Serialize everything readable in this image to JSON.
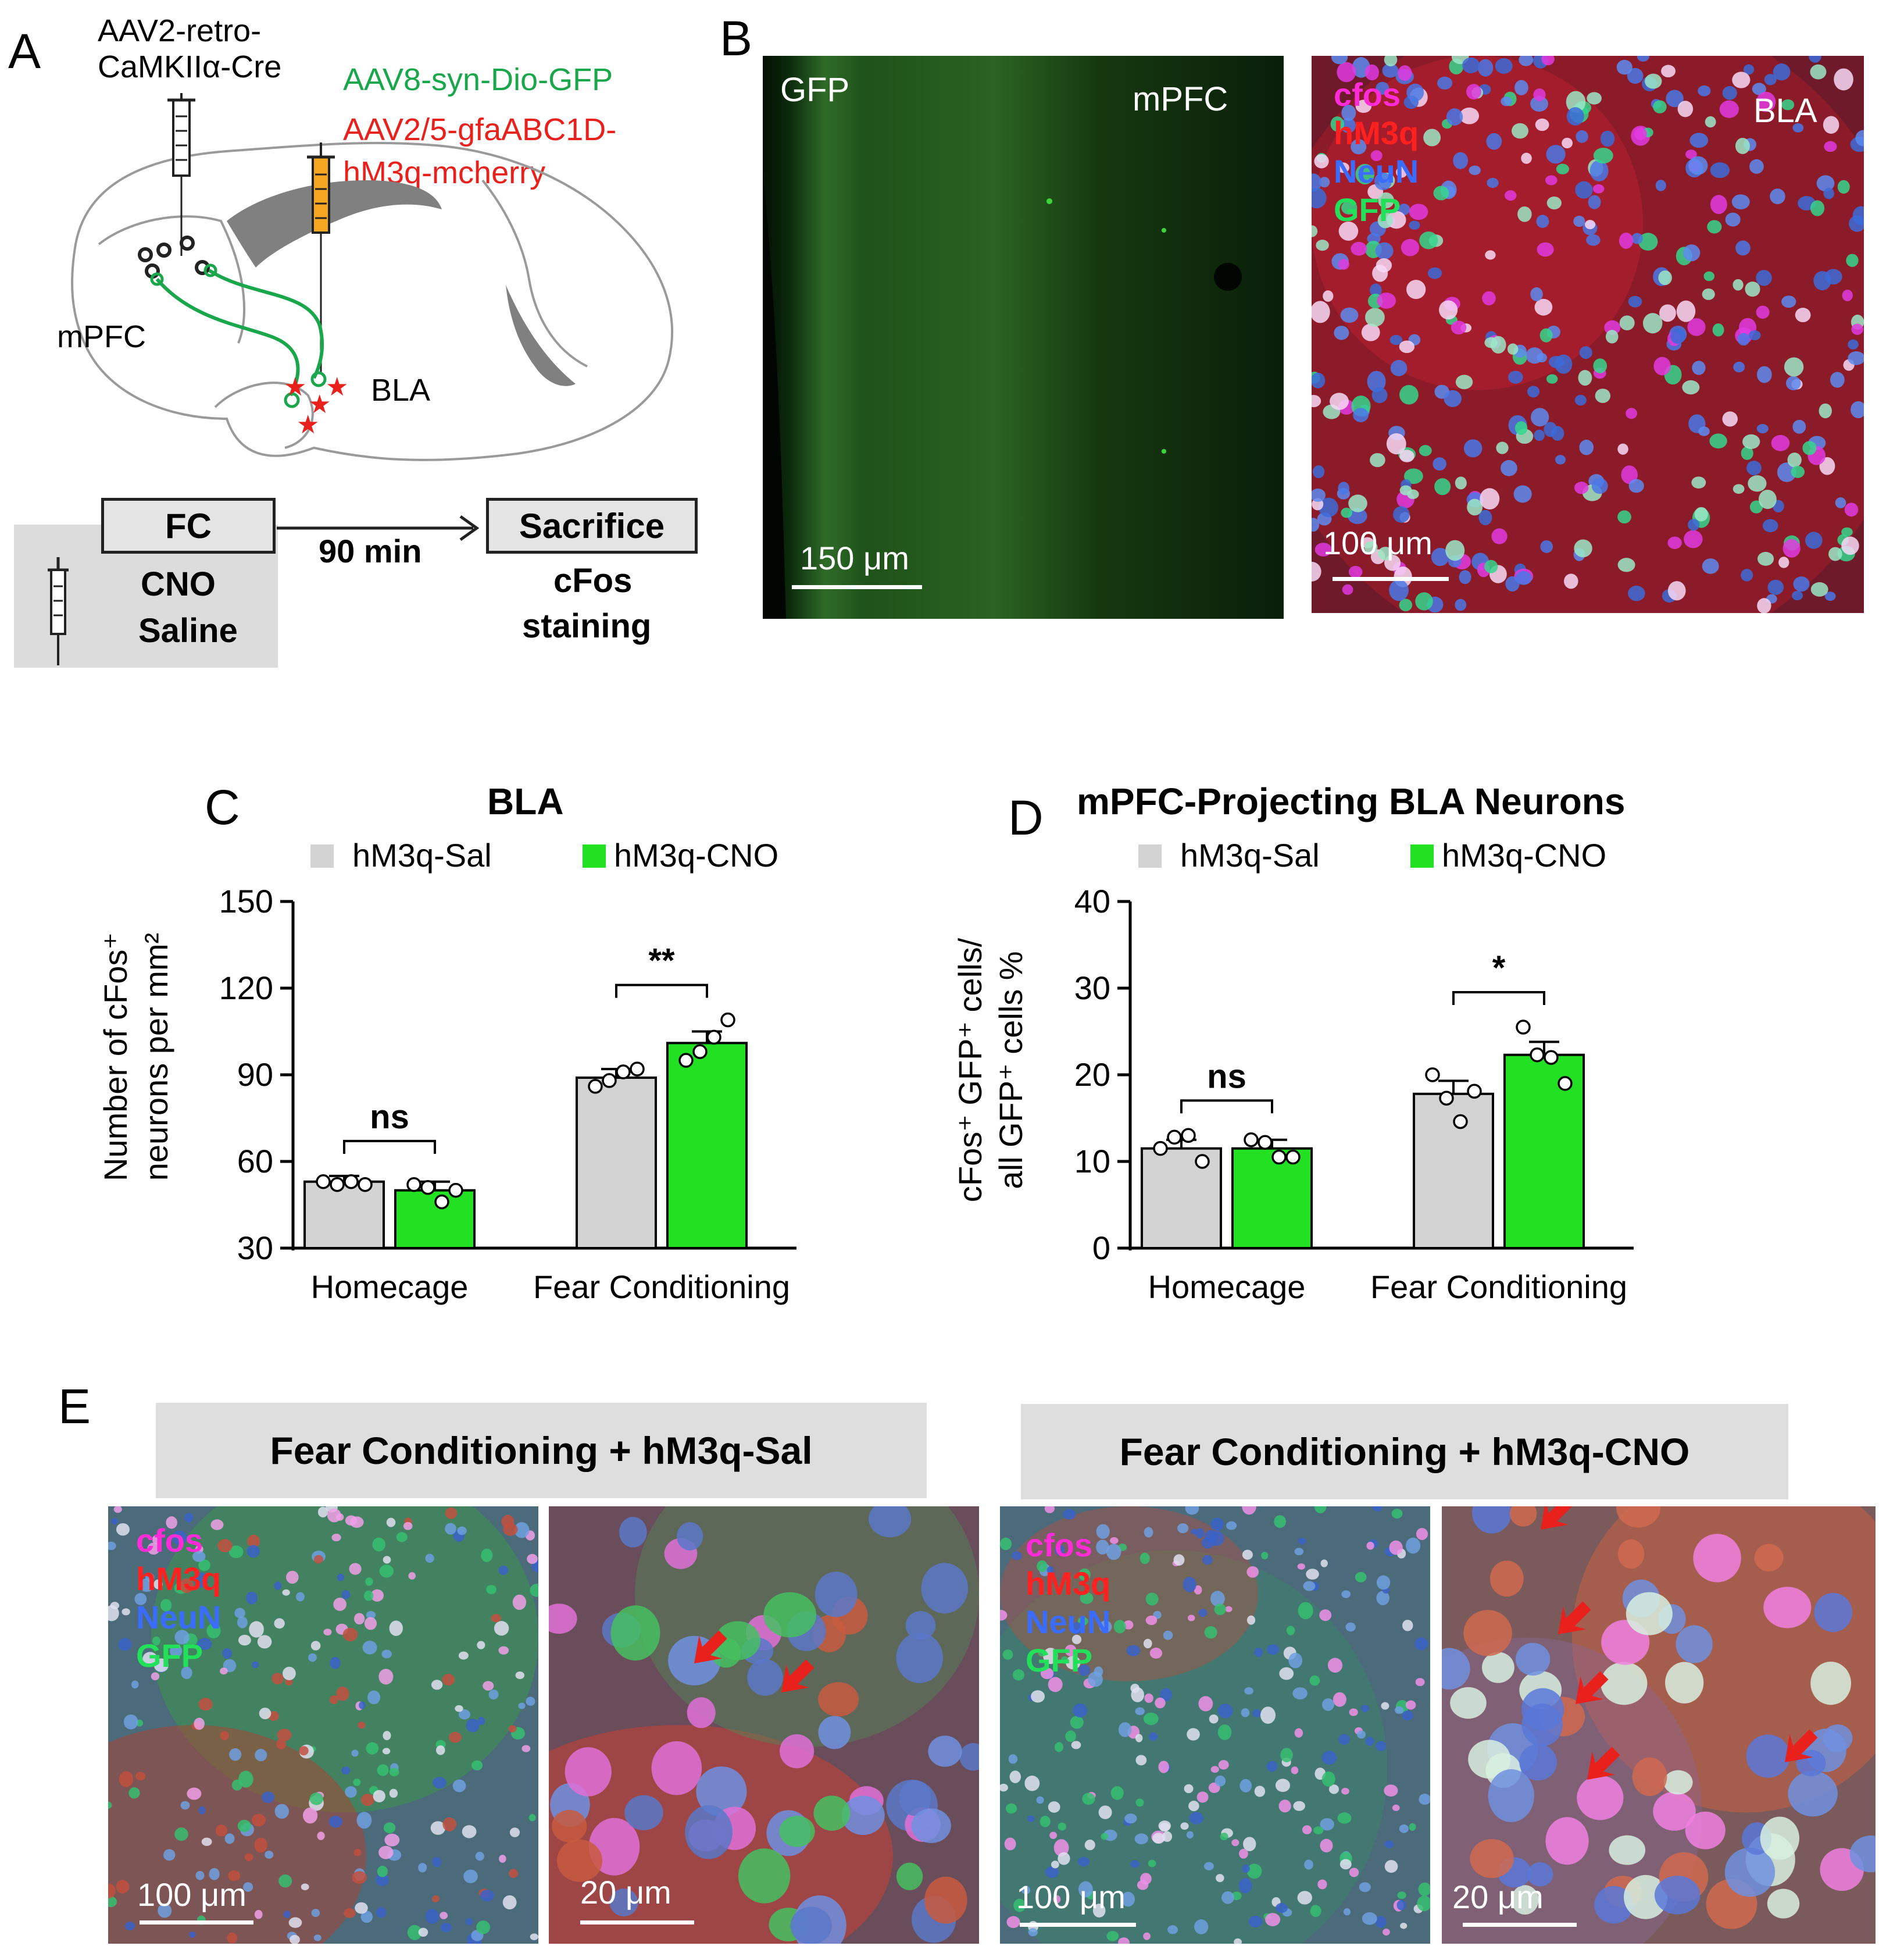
{
  "panel_letters": {
    "a": "A",
    "b": "B",
    "c": "C",
    "d": "D",
    "e": "E"
  },
  "panel_a": {
    "injection_1_line1": "AAV2-retro-",
    "injection_1_line2": "CaMKIIα-Cre",
    "injection_2_green": "AAV8-syn-Dio-GFP",
    "injection_3_red_line1": "AAV2/5-gfaABC1D-",
    "injection_3_red_line2": "hM3q-mcherry",
    "region_mpfc": "mPFC",
    "region_bla": "BLA",
    "timeline": {
      "fc_label": "FC",
      "delay_label": "90 min",
      "sacrifice_label": "Sacrifice",
      "treatment_line1": "CNO",
      "treatment_line2": "Saline",
      "staining_line1": "cFos",
      "staining_line2": "staining"
    },
    "colors": {
      "green": "#1aa64a",
      "red": "#e8211d",
      "syringe_orange": "#f5a623"
    }
  },
  "panel_b": {
    "left_image": {
      "channel": "GFP",
      "region": "mPFC",
      "scale_bar": "150 μm"
    },
    "right_image": {
      "channels": [
        {
          "name": "cfos",
          "color": "#ff2bd6"
        },
        {
          "name": "hM3q",
          "color": "#ff2020"
        },
        {
          "name": "NeuN",
          "color": "#3a6cff"
        },
        {
          "name": "GFP",
          "color": "#22e05a"
        }
      ],
      "region": "BLA",
      "scale_bar": "100 μm"
    }
  },
  "panel_e": {
    "banner_left": "Fear Conditioning + hM3q-Sal",
    "banner_right": "Fear Conditioning + hM3q-CNO",
    "channels": [
      {
        "name": "cfos",
        "color": "#ff2bd6"
      },
      {
        "name": "hM3q",
        "color": "#ff2020"
      },
      {
        "name": "NeuN",
        "color": "#3a6cff"
      },
      {
        "name": "GFP",
        "color": "#22e05a"
      }
    ],
    "scale_low": "100 μm",
    "scale_high": "20 μm"
  },
  "chart_data": [
    {
      "type": "bar",
      "panel": "C",
      "title": "BLA",
      "ylabel_line1": "Number of cFos⁺",
      "ylabel_line2": "neurons per mm²",
      "xlabel": "",
      "categories": [
        "Homecage",
        "Fear Conditioning"
      ],
      "ylim": [
        30,
        150
      ],
      "yticks": [
        30,
        60,
        90,
        120,
        150
      ],
      "series": [
        {
          "name": "hM3q-Sal",
          "color": "#d3d3d3",
          "values": [
            53,
            89
          ],
          "sem": [
            2,
            3
          ],
          "points": [
            [
              53,
              52,
              53,
              52
            ],
            [
              86,
              88,
              91,
              92
            ]
          ]
        },
        {
          "name": "hM3q-CNO",
          "color": "#22e022",
          "values": [
            50,
            101
          ],
          "sem": [
            3,
            4
          ],
          "points": [
            [
              52,
              51,
              46,
              50
            ],
            [
              95,
              98,
              103,
              109
            ]
          ]
        }
      ],
      "significance": [
        "ns",
        "**"
      ]
    },
    {
      "type": "bar",
      "panel": "D",
      "title": "mPFC-Projecting BLA Neurons",
      "ylabel_line1": "cFos⁺ GFP⁺ cells/",
      "ylabel_line2": "all GFP⁺ cells %",
      "xlabel": "",
      "categories": [
        "Homecage",
        "Fear Conditioning"
      ],
      "ylim": [
        0,
        40
      ],
      "yticks": [
        0,
        10,
        20,
        30,
        40
      ],
      "series": [
        {
          "name": "hM3q-Sal",
          "color": "#d3d3d3",
          "values": [
            11.5,
            17.8
          ],
          "sem": [
            1.0,
            1.5
          ],
          "points": [
            [
              11.5,
              12.8,
              13.0,
              10.0
            ],
            [
              20.0,
              17.3,
              14.6,
              18.1
            ]
          ]
        },
        {
          "name": "hM3q-CNO",
          "color": "#22e022",
          "values": [
            11.5,
            22.3
          ],
          "sem": [
            1.0,
            1.5
          ],
          "points": [
            [
              12.5,
              12.2,
              10.5,
              10.5
            ],
            [
              25.5,
              22.3,
              22.0,
              19.0
            ]
          ]
        }
      ],
      "significance": [
        "ns",
        "*"
      ]
    }
  ]
}
